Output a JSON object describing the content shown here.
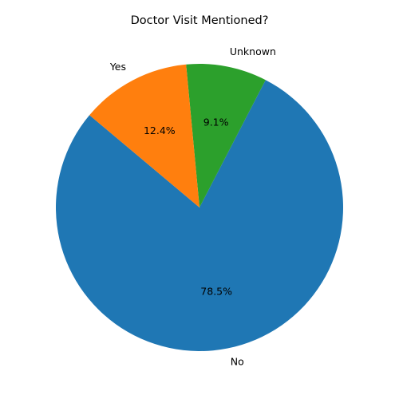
{
  "chart_data": {
    "type": "pie",
    "title": "Doctor Visit Mentioned?",
    "start_angle_deg": 140,
    "direction": "counterclockwise",
    "slices": [
      {
        "label": "No",
        "value": 78.5,
        "percent_label": "78.5%",
        "color": "#1f77b4"
      },
      {
        "label": "Unknown",
        "value": 9.1,
        "percent_label": "9.1%",
        "color": "#2ca02c"
      },
      {
        "label": "Yes",
        "value": 12.4,
        "percent_label": "12.4%",
        "color": "#ff7f0e"
      }
    ]
  }
}
